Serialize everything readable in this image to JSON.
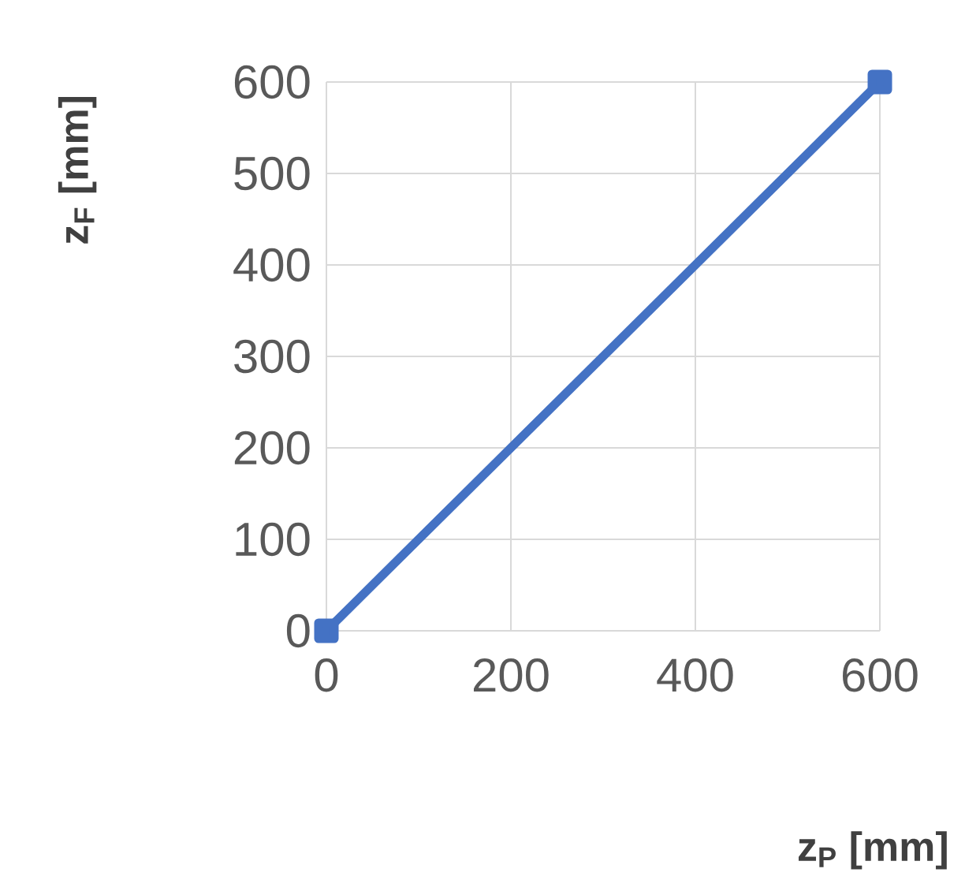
{
  "chart_data": {
    "type": "line",
    "xlabel": "z$_{P}$ [mm]",
    "ylabel": "z$_{F}$ [mm]",
    "x": [
      0,
      600
    ],
    "series": [
      {
        "color": "#4472c4",
        "values": [
          0,
          600
        ]
      }
    ],
    "xlim": [
      0,
      600
    ],
    "ylim": [
      0,
      600
    ],
    "xticks": [
      0,
      200,
      400,
      600
    ],
    "yticks": [
      0,
      100,
      200,
      300,
      400,
      500,
      600
    ],
    "grid": true,
    "marker": "square",
    "line_style": "solid"
  }
}
